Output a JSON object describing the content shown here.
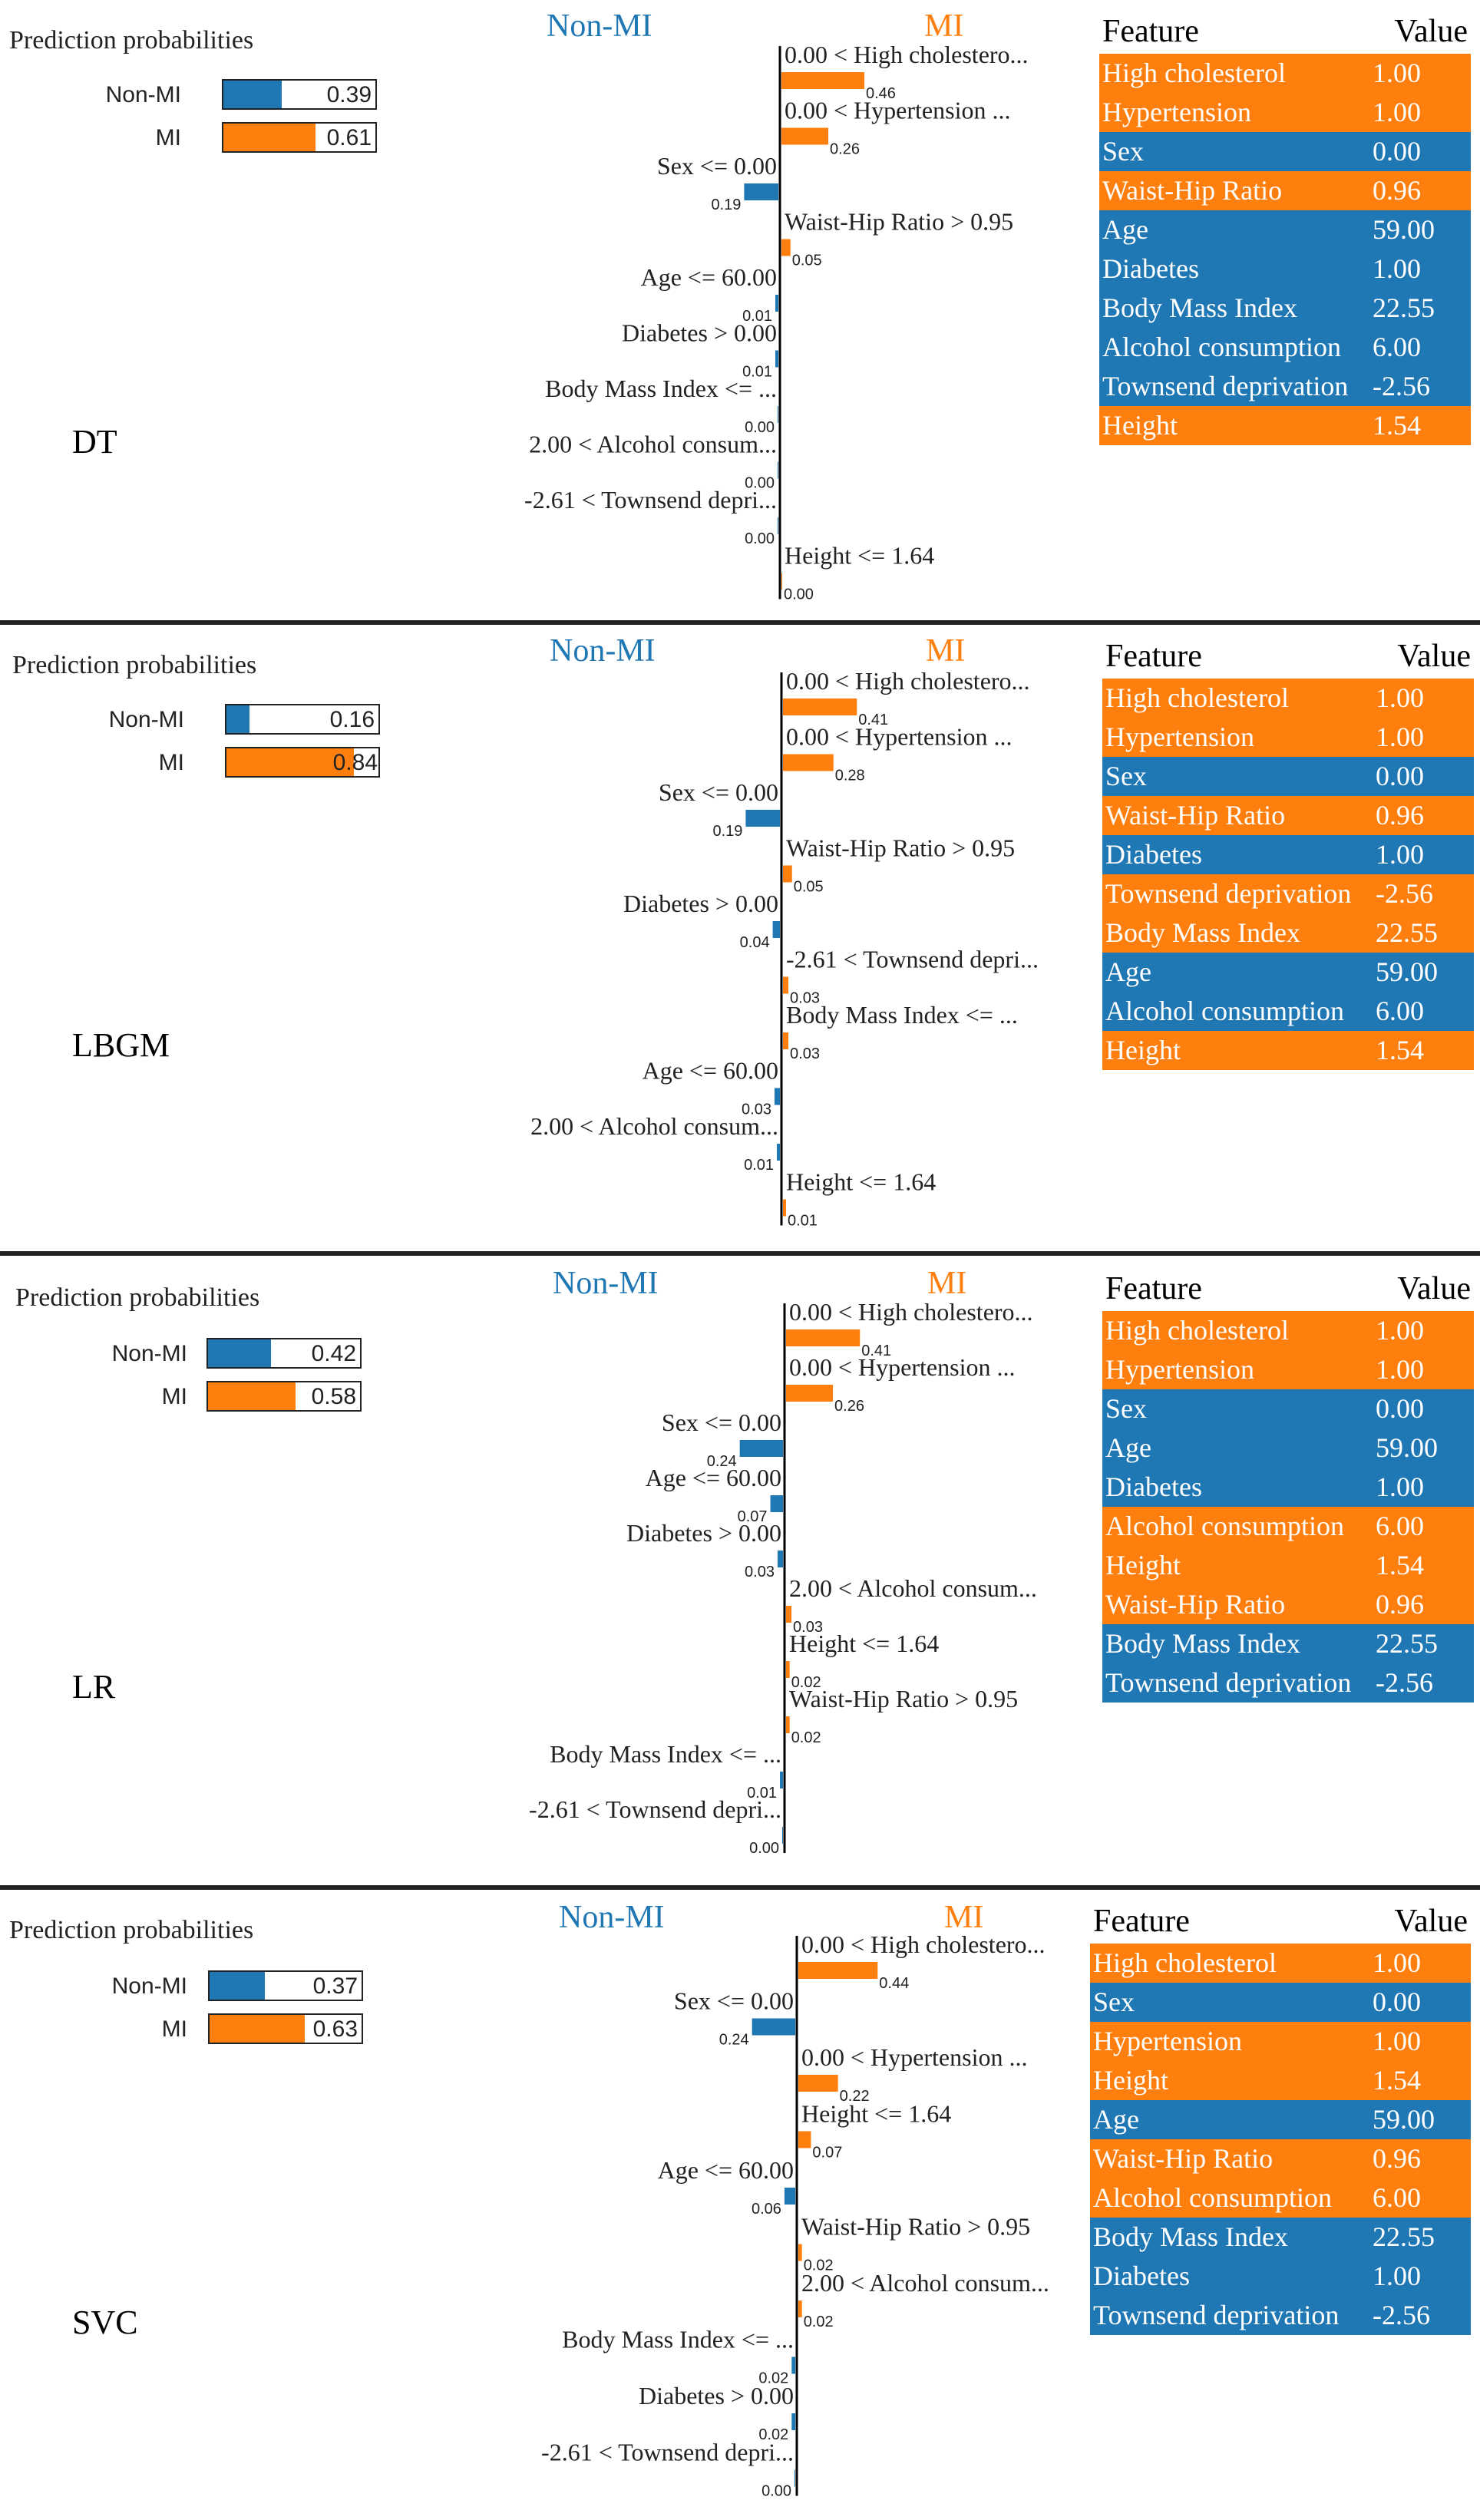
{
  "colors": {
    "mi": "#ff7f0e",
    "non_mi": "#1f77b4",
    "text": "#222222"
  },
  "labels": {
    "prediction_probabilities": "Prediction probabilities",
    "non_mi": "Non-MI",
    "mi": "MI",
    "feature_header": "Feature",
    "value_header": "Value"
  },
  "chart_data": [
    {
      "type": "bar",
      "model": "DT",
      "title": "Prediction probabilities",
      "probabilities": [
        {
          "class": "Non-MI",
          "value": 0.39,
          "label": "0.39"
        },
        {
          "class": "MI",
          "value": 0.61,
          "label": "0.61"
        }
      ],
      "contributions": [
        {
          "feature": "0.00 < High cholestero...",
          "class": "MI",
          "weight": 0.46,
          "label": "0.46"
        },
        {
          "feature": "0.00 < Hypertension ...",
          "class": "MI",
          "weight": 0.26,
          "label": "0.26"
        },
        {
          "feature": "Sex <= 0.00",
          "class": "Non-MI",
          "weight": 0.19,
          "label": "0.19"
        },
        {
          "feature": "Waist-Hip Ratio > 0.95",
          "class": "MI",
          "weight": 0.05,
          "label": "0.05"
        },
        {
          "feature": "Age <= 60.00",
          "class": "Non-MI",
          "weight": 0.01,
          "label": "0.01"
        },
        {
          "feature": "Diabetes > 0.00",
          "class": "Non-MI",
          "weight": 0.01,
          "label": "0.01"
        },
        {
          "feature": "Body Mass Index <= ...",
          "class": "Non-MI",
          "weight": 0.0,
          "label": "0.00"
        },
        {
          "feature": "2.00 < Alcohol consum...",
          "class": "Non-MI",
          "weight": 0.0,
          "label": "0.00"
        },
        {
          "feature": "-2.61 < Townsend depri...",
          "class": "Non-MI",
          "weight": 0.0,
          "label": "0.00"
        },
        {
          "feature": "Height <= 1.64",
          "class": "MI",
          "weight": 0.0,
          "label": "0.00"
        }
      ],
      "feature_table": [
        {
          "feature": "High cholesterol",
          "value": "1.00",
          "class": "MI"
        },
        {
          "feature": "Hypertension",
          "value": "1.00",
          "class": "MI"
        },
        {
          "feature": "Sex",
          "value": "0.00",
          "class": "Non-MI"
        },
        {
          "feature": "Waist-Hip Ratio",
          "value": "0.96",
          "class": "MI"
        },
        {
          "feature": "Age",
          "value": "59.00",
          "class": "Non-MI"
        },
        {
          "feature": "Diabetes",
          "value": "1.00",
          "class": "Non-MI"
        },
        {
          "feature": "Body Mass Index",
          "value": "22.55",
          "class": "Non-MI"
        },
        {
          "feature": "Alcohol consumption",
          "value": "6.00",
          "class": "Non-MI"
        },
        {
          "feature": "Townsend deprivation",
          "value": "-2.56",
          "class": "Non-MI"
        },
        {
          "feature": "Height",
          "value": "1.54",
          "class": "MI"
        }
      ]
    },
    {
      "type": "bar",
      "model": "LBGM",
      "title": "Prediction probabilities",
      "probabilities": [
        {
          "class": "Non-MI",
          "value": 0.16,
          "label": "0.16"
        },
        {
          "class": "MI",
          "value": 0.84,
          "label": "0.84"
        }
      ],
      "contributions": [
        {
          "feature": "0.00 < High cholestero...",
          "class": "MI",
          "weight": 0.41,
          "label": "0.41"
        },
        {
          "feature": "0.00 < Hypertension ...",
          "class": "MI",
          "weight": 0.28,
          "label": "0.28"
        },
        {
          "feature": "Sex <= 0.00",
          "class": "Non-MI",
          "weight": 0.19,
          "label": "0.19"
        },
        {
          "feature": "Waist-Hip Ratio > 0.95",
          "class": "MI",
          "weight": 0.05,
          "label": "0.05"
        },
        {
          "feature": "Diabetes > 0.00",
          "class": "Non-MI",
          "weight": 0.04,
          "label": "0.04"
        },
        {
          "feature": "-2.61 < Townsend depri...",
          "class": "MI",
          "weight": 0.03,
          "label": "0.03"
        },
        {
          "feature": "Body Mass Index <= ...",
          "class": "MI",
          "weight": 0.03,
          "label": "0.03"
        },
        {
          "feature": "Age <= 60.00",
          "class": "Non-MI",
          "weight": 0.03,
          "label": "0.03"
        },
        {
          "feature": "2.00 < Alcohol consum...",
          "class": "Non-MI",
          "weight": 0.01,
          "label": "0.01"
        },
        {
          "feature": "Height <= 1.64",
          "class": "MI",
          "weight": 0.01,
          "label": "0.01"
        }
      ],
      "feature_table": [
        {
          "feature": "High cholesterol",
          "value": "1.00",
          "class": "MI"
        },
        {
          "feature": "Hypertension",
          "value": "1.00",
          "class": "MI"
        },
        {
          "feature": "Sex",
          "value": "0.00",
          "class": "Non-MI"
        },
        {
          "feature": "Waist-Hip Ratio",
          "value": "0.96",
          "class": "MI"
        },
        {
          "feature": "Diabetes",
          "value": "1.00",
          "class": "Non-MI"
        },
        {
          "feature": "Townsend deprivation",
          "value": "-2.56",
          "class": "MI"
        },
        {
          "feature": "Body Mass Index",
          "value": "22.55",
          "class": "MI"
        },
        {
          "feature": "Age",
          "value": "59.00",
          "class": "Non-MI"
        },
        {
          "feature": "Alcohol consumption",
          "value": "6.00",
          "class": "Non-MI"
        },
        {
          "feature": "Height",
          "value": "1.54",
          "class": "MI"
        }
      ]
    },
    {
      "type": "bar",
      "model": "LR",
      "title": "Prediction probabilities",
      "probabilities": [
        {
          "class": "Non-MI",
          "value": 0.42,
          "label": "0.42"
        },
        {
          "class": "MI",
          "value": 0.58,
          "label": "0.58"
        }
      ],
      "contributions": [
        {
          "feature": "0.00 < High cholestero...",
          "class": "MI",
          "weight": 0.41,
          "label": "0.41"
        },
        {
          "feature": "0.00 < Hypertension ...",
          "class": "MI",
          "weight": 0.26,
          "label": "0.26"
        },
        {
          "feature": "Sex <= 0.00",
          "class": "Non-MI",
          "weight": 0.24,
          "label": "0.24"
        },
        {
          "feature": "Age <= 60.00",
          "class": "Non-MI",
          "weight": 0.07,
          "label": "0.07"
        },
        {
          "feature": "Diabetes > 0.00",
          "class": "Non-MI",
          "weight": 0.03,
          "label": "0.03"
        },
        {
          "feature": "2.00 < Alcohol consum...",
          "class": "MI",
          "weight": 0.03,
          "label": "0.03"
        },
        {
          "feature": "Height <= 1.64",
          "class": "MI",
          "weight": 0.02,
          "label": "0.02"
        },
        {
          "feature": "Waist-Hip Ratio > 0.95",
          "class": "MI",
          "weight": 0.02,
          "label": "0.02"
        },
        {
          "feature": "Body Mass Index <= ...",
          "class": "Non-MI",
          "weight": 0.01,
          "label": "0.01"
        },
        {
          "feature": "-2.61 < Townsend depri...",
          "class": "Non-MI",
          "weight": 0.0,
          "label": "0.00"
        }
      ],
      "feature_table": [
        {
          "feature": "High cholesterol",
          "value": "1.00",
          "class": "MI"
        },
        {
          "feature": "Hypertension",
          "value": "1.00",
          "class": "MI"
        },
        {
          "feature": "Sex",
          "value": "0.00",
          "class": "Non-MI"
        },
        {
          "feature": "Age",
          "value": "59.00",
          "class": "Non-MI"
        },
        {
          "feature": "Diabetes",
          "value": "1.00",
          "class": "Non-MI"
        },
        {
          "feature": "Alcohol consumption",
          "value": "6.00",
          "class": "MI"
        },
        {
          "feature": "Height",
          "value": "1.54",
          "class": "MI"
        },
        {
          "feature": "Waist-Hip Ratio",
          "value": "0.96",
          "class": "MI"
        },
        {
          "feature": "Body Mass Index",
          "value": "22.55",
          "class": "Non-MI"
        },
        {
          "feature": "Townsend deprivation",
          "value": "-2.56",
          "class": "Non-MI"
        }
      ]
    },
    {
      "type": "bar",
      "model": "SVC",
      "title": "Prediction probabilities",
      "probabilities": [
        {
          "class": "Non-MI",
          "value": 0.37,
          "label": "0.37"
        },
        {
          "class": "MI",
          "value": 0.63,
          "label": "0.63"
        }
      ],
      "contributions": [
        {
          "feature": "0.00 < High cholestero...",
          "class": "MI",
          "weight": 0.44,
          "label": "0.44"
        },
        {
          "feature": "Sex <= 0.00",
          "class": "Non-MI",
          "weight": 0.24,
          "label": "0.24"
        },
        {
          "feature": "0.00 < Hypertension ...",
          "class": "MI",
          "weight": 0.22,
          "label": "0.22"
        },
        {
          "feature": "Height <= 1.64",
          "class": "MI",
          "weight": 0.07,
          "label": "0.07"
        },
        {
          "feature": "Age <= 60.00",
          "class": "Non-MI",
          "weight": 0.06,
          "label": "0.06"
        },
        {
          "feature": "Waist-Hip Ratio > 0.95",
          "class": "MI",
          "weight": 0.02,
          "label": "0.02"
        },
        {
          "feature": "2.00 < Alcohol consum...",
          "class": "MI",
          "weight": 0.02,
          "label": "0.02"
        },
        {
          "feature": "Body Mass Index <= ...",
          "class": "Non-MI",
          "weight": 0.02,
          "label": "0.02"
        },
        {
          "feature": "Diabetes > 0.00",
          "class": "Non-MI",
          "weight": 0.02,
          "label": "0.02"
        },
        {
          "feature": "-2.61 < Townsend depri...",
          "class": "Non-MI",
          "weight": 0.0,
          "label": "0.00"
        }
      ],
      "feature_table": [
        {
          "feature": "High cholesterol",
          "value": "1.00",
          "class": "MI"
        },
        {
          "feature": "Sex",
          "value": "0.00",
          "class": "Non-MI"
        },
        {
          "feature": "Hypertension",
          "value": "1.00",
          "class": "MI"
        },
        {
          "feature": "Height",
          "value": "1.54",
          "class": "MI"
        },
        {
          "feature": "Age",
          "value": "59.00",
          "class": "Non-MI"
        },
        {
          "feature": "Waist-Hip Ratio",
          "value": "0.96",
          "class": "MI"
        },
        {
          "feature": "Alcohol consumption",
          "value": "6.00",
          "class": "MI"
        },
        {
          "feature": "Body Mass Index",
          "value": "22.55",
          "class": "Non-MI"
        },
        {
          "feature": "Diabetes",
          "value": "1.00",
          "class": "Non-MI"
        },
        {
          "feature": "Townsend deprivation",
          "value": "-2.56",
          "class": "Non-MI"
        }
      ]
    }
  ]
}
